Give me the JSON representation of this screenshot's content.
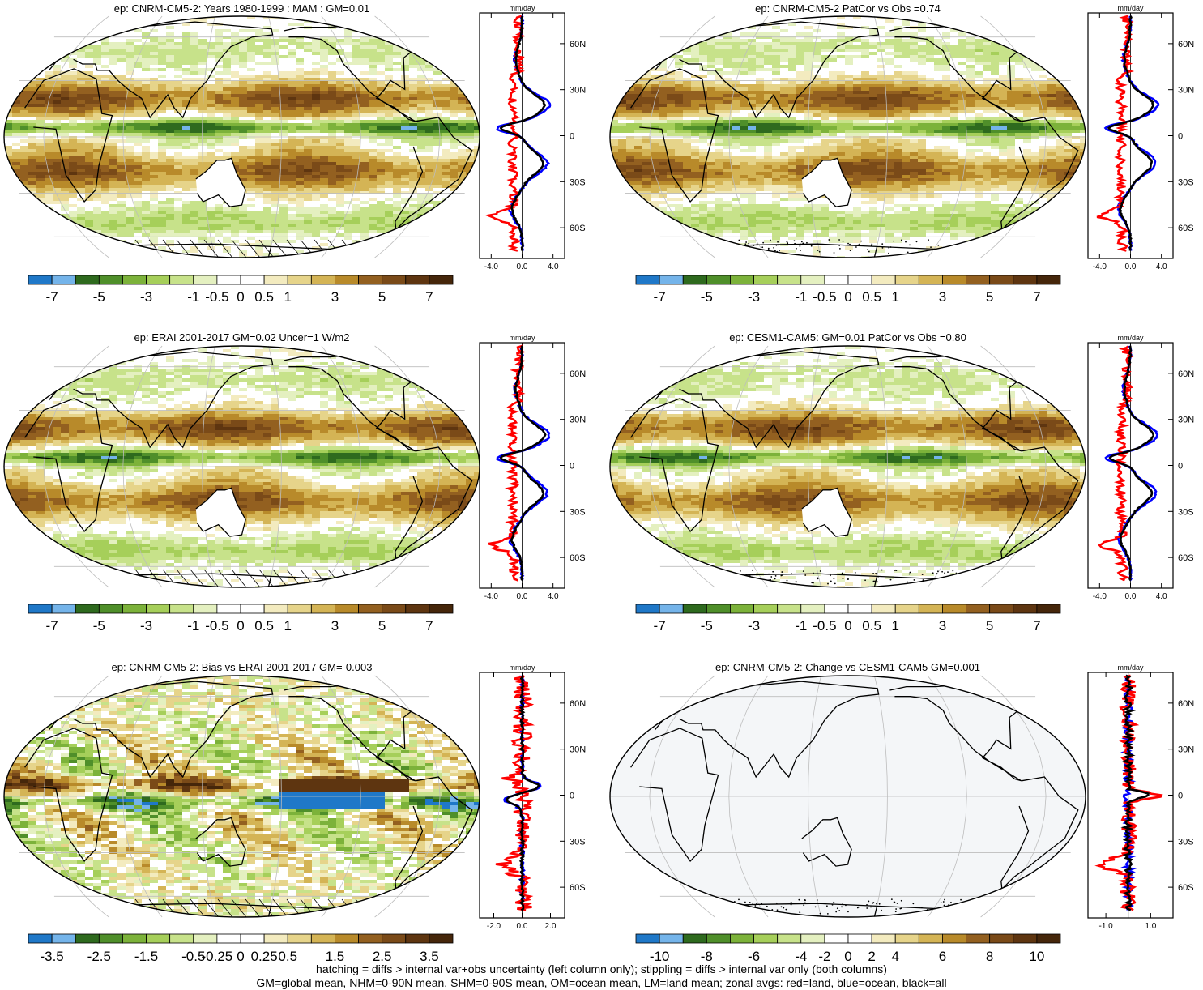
{
  "footer": {
    "line1": "hatching = diffs > internal var+obs uncertainty (left column only); stippling = diffs > internal var only (both columns)",
    "line2": "GM=global mean, NHM=0-90N mean, SHM=0-90S mean, OM=ocean mean, LM=land mean; zonal avgs: red=land, blue=ocean, black=all"
  },
  "colors": {
    "land": "#ff0000",
    "ocean": "#0000ff",
    "all": "#000000",
    "palette": [
      "#1f78c8",
      "#74b4ea",
      "#2e6a1e",
      "#4f8f2a",
      "#7cb23a",
      "#a6cf5a",
      "#c7e28a",
      "#e4f0c0",
      "#ffffff",
      "#ffffff",
      "#f3ebbf",
      "#e6d48a",
      "#d4b455",
      "#b88a2a",
      "#936020",
      "#7a4a18",
      "#5e3510",
      "#45260a"
    ]
  },
  "chart_data": [
    {
      "type": "heatmap",
      "name": "panel-1",
      "title": "ep: CNRM-CM5-2: Years 1980-1999 : MAM : GM=0.01",
      "colorbar_labels": [
        "-7",
        "-5",
        "-3",
        "-1",
        "-0.5",
        "0",
        "0.5",
        "1",
        "3",
        "5",
        "7"
      ],
      "zonal": {
        "units": "mm/day",
        "xticks": [
          "-4.0",
          "0.0",
          "4.0"
        ],
        "xlim": [
          -5.5,
          5.5
        ],
        "yticks": [
          "60N",
          "30N",
          "0",
          "30S",
          "60S"
        ],
        "ylim": [
          -80,
          80
        ]
      }
    },
    {
      "type": "heatmap",
      "name": "panel-2",
      "title": "ep: CNRM-CM5-2 PatCor vs Obs =0.74",
      "colorbar_labels": [
        "-7",
        "-5",
        "-3",
        "-1",
        "-0.5",
        "0",
        "0.5",
        "1",
        "3",
        "5",
        "7"
      ],
      "zonal": {
        "units": "mm/day",
        "xticks": [
          "-4.0",
          "0.0",
          "4.0"
        ],
        "xlim": [
          -5.5,
          5.5
        ],
        "yticks": [
          "60N",
          "30N",
          "0",
          "30S",
          "60S"
        ],
        "ylim": [
          -80,
          80
        ]
      }
    },
    {
      "type": "heatmap",
      "name": "panel-3",
      "title": "ep: ERAI 2001-2017 GM=0.02 Uncer=1 W/m2",
      "colorbar_labels": [
        "-7",
        "-5",
        "-3",
        "-1",
        "-0.5",
        "0",
        "0.5",
        "1",
        "3",
        "5",
        "7"
      ],
      "zonal": {
        "units": "mm/day",
        "xticks": [
          "-4.0",
          "0.0",
          "4.0"
        ],
        "xlim": [
          -5.5,
          5.5
        ],
        "yticks": [
          "60N",
          "30N",
          "0",
          "30S",
          "60S"
        ],
        "ylim": [
          -80,
          80
        ]
      }
    },
    {
      "type": "heatmap",
      "name": "panel-4",
      "title": "ep: CESM1-CAM5: GM=0.01 PatCor vs Obs =0.80",
      "colorbar_labels": [
        "-7",
        "-5",
        "-3",
        "-1",
        "-0.5",
        "0",
        "0.5",
        "1",
        "3",
        "5",
        "7"
      ],
      "zonal": {
        "units": "mm/day",
        "xticks": [
          "-4.0",
          "0.0",
          "4.0"
        ],
        "xlim": [
          -5.5,
          5.5
        ],
        "yticks": [
          "60N",
          "30N",
          "0",
          "30S",
          "60S"
        ],
        "ylim": [
          -80,
          80
        ]
      }
    },
    {
      "type": "heatmap",
      "name": "panel-5",
      "title": "ep: CNRM-CM5-2: Bias vs ERAI 2001-2017 GM=-0.003",
      "colorbar_labels": [
        "-3.5",
        "-2.5",
        "-1.5",
        "-0.5",
        "-0.25",
        "0",
        "0.25",
        "0.5",
        "1.5",
        "2.5",
        "3.5"
      ],
      "zonal": {
        "units": "mm/day",
        "xticks": [
          "-2.0",
          "0.0",
          "2.0"
        ],
        "xlim": [
          -3,
          3
        ],
        "yticks": [
          "60N",
          "30N",
          "0",
          "30S",
          "60S"
        ],
        "ylim": [
          -80,
          80
        ]
      }
    },
    {
      "type": "heatmap",
      "name": "panel-6",
      "title": "ep: CNRM-CM5-2: Change vs CESM1-CAM5 GM=0.001",
      "colorbar_labels": [
        "-10",
        "-8",
        "-6",
        "-4",
        "-2",
        "0",
        "2",
        "4",
        "6",
        "8",
        "10"
      ],
      "zonal": {
        "units": "mm/day",
        "xticks": [
          "-1.0",
          "1.0"
        ],
        "xlim": [
          -1.8,
          2.0
        ],
        "yticks": [
          "60N",
          "30N",
          "0",
          "30S",
          "60S"
        ],
        "ylim": [
          -80,
          80
        ]
      }
    }
  ]
}
